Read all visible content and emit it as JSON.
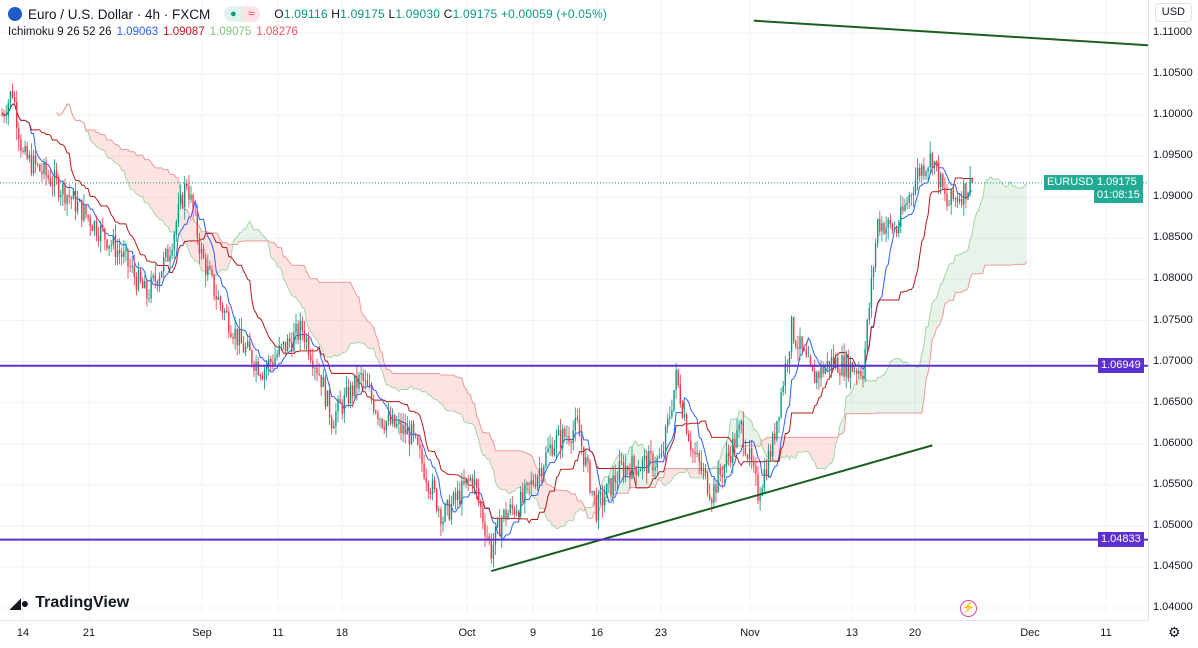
{
  "header": {
    "symbol": "Euro / U.S. Dollar · 4h · FXCM",
    "status_icon": "market-open-dot",
    "delay_icon": "approx-icon",
    "o_label": "O",
    "o": "1.09116",
    "h_label": "H",
    "h": "1.09175",
    "l_label": "L",
    "l": "1.09030",
    "c_label": "C",
    "c": "1.09175",
    "change": "+0.00059 (+0.05%)"
  },
  "indicator": {
    "name": "Ichimoku 9 26 52 26",
    "tenkan": "1.09063",
    "kijun": "1.09087",
    "spanA": "1.09075",
    "spanB": "1.08276",
    "colors": {
      "tenkan": "#2962ff",
      "kijun": "#b71c1c",
      "spanA": "#81c784",
      "spanB": "#f7525f"
    }
  },
  "currency": "USD",
  "price_axis": [
    "1.11000",
    "1.10500",
    "1.10000",
    "1.09500",
    "1.09000",
    "1.08500",
    "1.08000",
    "1.07500",
    "1.07000",
    "1.06500",
    "1.06000",
    "1.05500",
    "1.05000",
    "1.04500",
    "1.04000"
  ],
  "time_axis": [
    [
      "14",
      23
    ],
    [
      "21",
      89
    ],
    [
      "Sep",
      202
    ],
    [
      "11",
      278
    ],
    [
      "18",
      342
    ],
    [
      "Oct",
      467
    ],
    [
      "9",
      533
    ],
    [
      "16",
      597
    ],
    [
      "23",
      661
    ],
    [
      "Nov",
      750
    ],
    [
      "13",
      852
    ],
    [
      "20",
      915
    ],
    [
      "Dec",
      1030
    ],
    [
      "11",
      1106
    ]
  ],
  "last_price": {
    "symbol": "EURUSD",
    "price": "1.09175",
    "countdown": "01:08:15",
    "value": 1.09175
  },
  "levels": [
    {
      "label": "1.06949",
      "value": 1.06949
    },
    {
      "label": "1.04833",
      "value": 1.04833
    }
  ],
  "logo": "TradingView",
  "chart_data": {
    "type": "candlestick",
    "ylim": [
      1.04,
      1.11
    ],
    "keypoints": [
      [
        0,
        1.1
      ],
      [
        5,
        1.103
      ],
      [
        10,
        1.095
      ],
      [
        29,
        1.091
      ],
      [
        43,
        1.087
      ],
      [
        57,
        1.083
      ],
      [
        69,
        1.078
      ],
      [
        79,
        1.083
      ],
      [
        88,
        1.092
      ],
      [
        95,
        1.083
      ],
      [
        102,
        1.078
      ],
      [
        114,
        1.072
      ],
      [
        124,
        1.069
      ],
      [
        143,
        1.074
      ],
      [
        152,
        1.068
      ],
      [
        157,
        1.063
      ],
      [
        171,
        1.068
      ],
      [
        181,
        1.063
      ],
      [
        195,
        1.061
      ],
      [
        210,
        1.051
      ],
      [
        224,
        1.056
      ],
      [
        233,
        1.047
      ],
      [
        238,
        1.051
      ],
      [
        248,
        1.053
      ],
      [
        262,
        1.06
      ],
      [
        274,
        1.062
      ],
      [
        283,
        1.052
      ],
      [
        295,
        1.057
      ],
      [
        314,
        1.058
      ],
      [
        321,
        1.068
      ],
      [
        329,
        1.059
      ],
      [
        338,
        1.054
      ],
      [
        352,
        1.062
      ],
      [
        360,
        1.054
      ],
      [
        367,
        1.06
      ],
      [
        376,
        1.074
      ],
      [
        386,
        1.068
      ],
      [
        395,
        1.07
      ],
      [
        410,
        1.069
      ],
      [
        417,
        1.087
      ],
      [
        426,
        1.086
      ],
      [
        436,
        1.093
      ],
      [
        443,
        1.095
      ],
      [
        450,
        1.089
      ],
      [
        462,
        1.09175
      ]
    ],
    "trendlines": [
      [
        [
          233,
          1.0445
        ],
        [
          443,
          1.0598
        ]
      ],
      [
        [
          358,
          1.1115
        ],
        [
          546,
          1.1085
        ]
      ]
    ]
  }
}
